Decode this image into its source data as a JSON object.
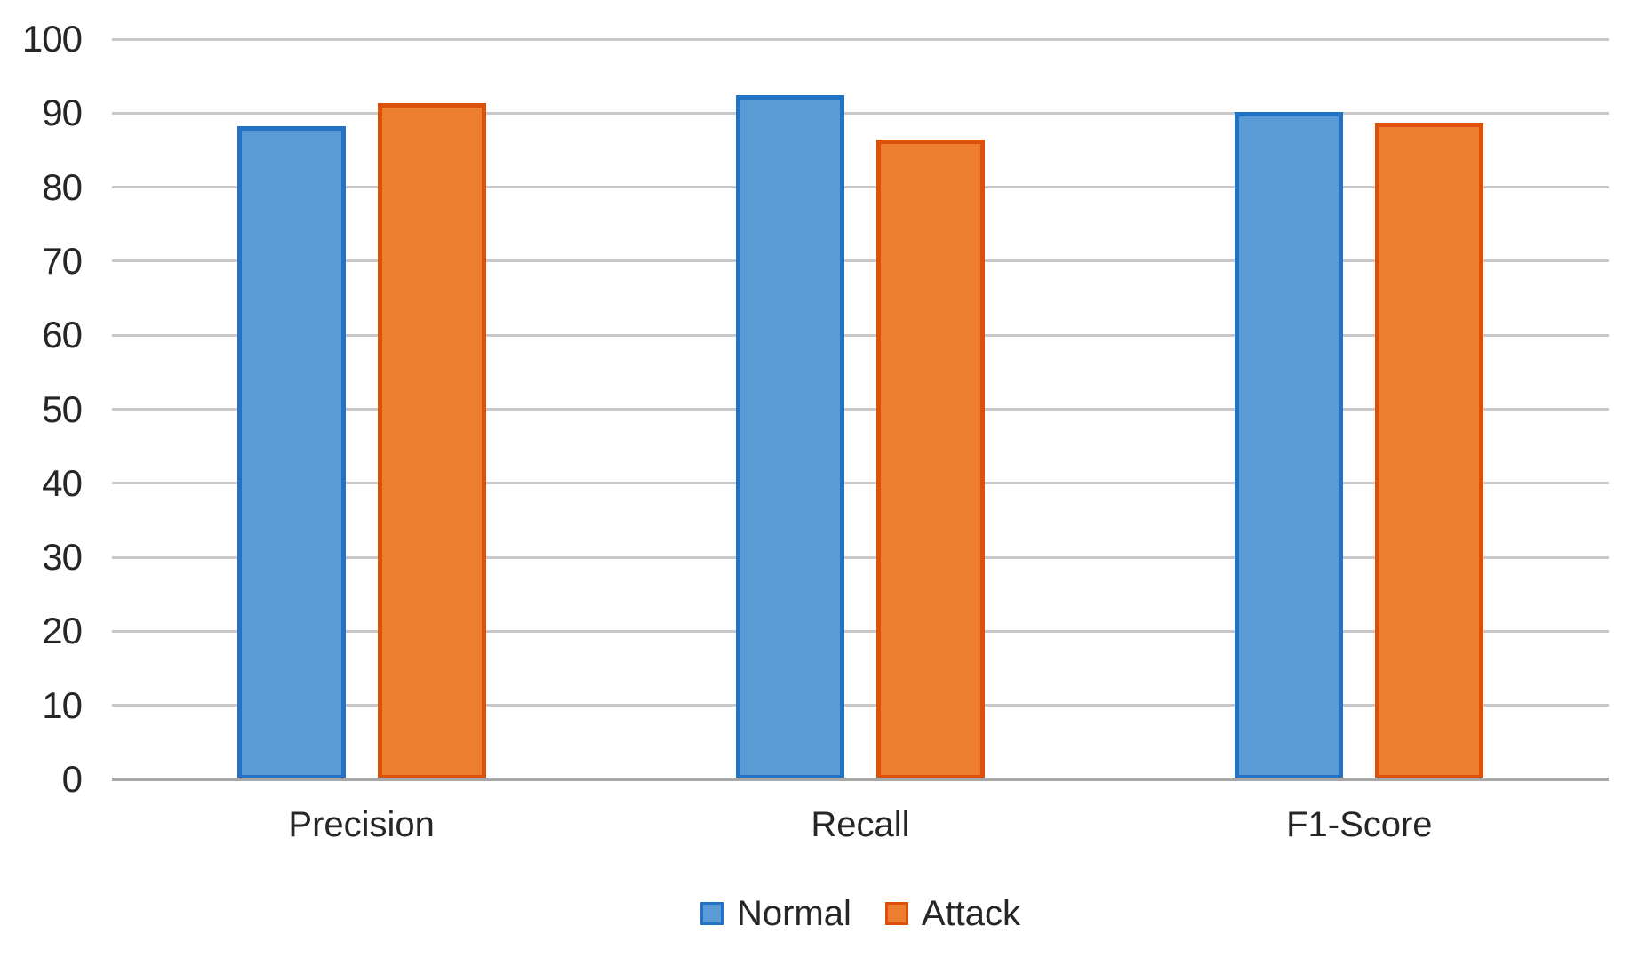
{
  "chart_data": {
    "type": "bar",
    "title": "",
    "xlabel": "",
    "ylabel": "",
    "categories": [
      "Precision",
      "Recall",
      "F1-Score"
    ],
    "series": [
      {
        "name": "Normal",
        "values": [
          88.2,
          92.4,
          90.1
        ],
        "fill": "#5B9BD5",
        "border": "#2273C3"
      },
      {
        "name": "Attack",
        "values": [
          91.4,
          86.4,
          88.7
        ],
        "fill": "#ED7D31",
        "border": "#DC5009"
      }
    ],
    "ylim": [
      0,
      100
    ],
    "yticks": [
      0,
      10,
      20,
      30,
      40,
      50,
      60,
      70,
      80,
      90,
      100
    ],
    "grid": true,
    "legend_position": "bottom",
    "colors": {
      "gridline": "#C8C8C8",
      "axis_line": "#A8A8A8",
      "text": "#262626",
      "background": "#FFFFFF"
    }
  }
}
